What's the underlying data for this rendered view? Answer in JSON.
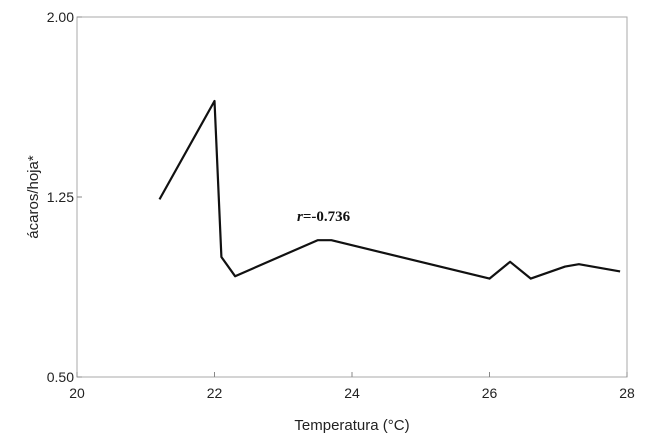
{
  "chart_data": {
    "type": "line",
    "title": "",
    "xlabel": "Temperatura (°C)",
    "ylabel": "ácaros/hoja*",
    "xlim": [
      20,
      28
    ],
    "ylim": [
      0.5,
      2.0
    ],
    "x_ticks": [
      20,
      22,
      24,
      26,
      28
    ],
    "y_ticks": [
      0.5,
      1.25,
      2.0
    ],
    "x_tick_labels": [
      "20",
      "22",
      "24",
      "26",
      "28"
    ],
    "y_tick_labels": [
      "0.50",
      "1.25",
      "2.00"
    ],
    "grid": false,
    "legend": "none",
    "series": [
      {
        "x": [
          21.2,
          22.0,
          22.1,
          22.3,
          23.5,
          23.7,
          26.0,
          26.3,
          26.6,
          27.1,
          27.3,
          27.9
        ],
        "y": [
          1.24,
          1.65,
          1.0,
          0.92,
          1.07,
          1.07,
          0.91,
          0.98,
          0.91,
          0.96,
          0.97,
          0.94
        ],
        "color": "#111111"
      }
    ],
    "annotations": [
      {
        "r_symbol": "r",
        "text": "=-0.736",
        "x": 23.2,
        "y": 1.15
      }
    ]
  }
}
